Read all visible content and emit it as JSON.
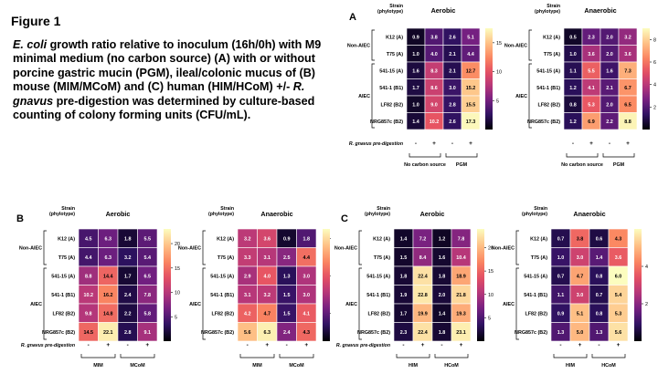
{
  "figure": {
    "title": "Figure 1",
    "caption": {
      "p1": "E. coli",
      "p2": " growth ratio relative to inoculum (16h/0h) with M9 minimal medium (no carbon source) (A) with or without porcine gastric mucin (PGM), ileal/colonic mucus of (B) mouse (MIM/MCoM) and (C) human (HIM/HCoM) +/- ",
      "p3": "R. gnavus",
      "p4": " pre-digestion was determined by culture-based counting of colony forming units (CFU/mL)."
    }
  },
  "colors": {
    "stops": [
      "#000004",
      "#2d1160",
      "#721f81",
      "#b5367a",
      "#e55063",
      "#fb8861",
      "#fec287",
      "#fcfdbf"
    ]
  },
  "chart_data": [
    {
      "type": "heatmap",
      "panel": "A",
      "row_header": "Strain\n(phylotype)",
      "rows": [
        "K12 (A)",
        "T75 (A)",
        "541-15 (A)",
        "541-1 (B1)",
        "LF82 (B2)",
        "NRG857c (B2)"
      ],
      "group_labels": [
        "Non-AIEC",
        "AIEC"
      ],
      "predigestion_label": "R. gnavus pre-digestion",
      "treatment_signs": [
        "-",
        "+",
        "-",
        "+"
      ],
      "column_groups": [
        "No carbon source",
        "PGM"
      ],
      "maps": [
        {
          "title": "Aerobic",
          "scale_ticks": [
            5,
            10,
            15
          ],
          "vmin": 0,
          "vmax": 17.5,
          "values": [
            [
              0.9,
              3.8,
              2.6,
              5.1
            ],
            [
              1.0,
              4.0,
              2.1,
              4.4
            ],
            [
              1.6,
              8.3,
              2.1,
              12.7
            ],
            [
              1.7,
              8.6,
              3.0,
              15.2
            ],
            [
              1.0,
              9.0,
              2.8,
              15.5
            ],
            [
              1.4,
              10.2,
              2.6,
              17.3
            ]
          ]
        },
        {
          "title": "Anaerobic",
          "scale_ticks": [
            2,
            4,
            6,
            8
          ],
          "vmin": 0,
          "vmax": 9,
          "values": [
            [
              0.5,
              2.3,
              2.0,
              3.2
            ],
            [
              1.0,
              3.6,
              2.0,
              3.6
            ],
            [
              1.1,
              5.5,
              1.6,
              7.3
            ],
            [
              1.2,
              4.1,
              2.1,
              6.7
            ],
            [
              0.8,
              5.3,
              2.0,
              6.5
            ],
            [
              1.2,
              6.9,
              2.2,
              8.8
            ]
          ]
        }
      ]
    },
    {
      "type": "heatmap",
      "panel": "B",
      "row_header": "Strain\n(phylotype)",
      "rows": [
        "K12 (A)",
        "T75 (A)",
        "541-15 (A)",
        "541-1 (B1)",
        "LF82 (B2)",
        "NRG857c (B2)"
      ],
      "group_labels": [
        "Non-AIEC",
        "AIEC"
      ],
      "predigestion_label": "R. gnavus pre-digestion",
      "treatment_signs": [
        "-",
        "+",
        "-",
        "+"
      ],
      "column_groups": [
        "MIM",
        "MCoM"
      ],
      "maps": [
        {
          "title": "Aerobic",
          "scale_ticks": [
            5,
            10,
            15,
            20
          ],
          "vmin": 0,
          "vmax": 23,
          "values": [
            [
              4.5,
              6.3,
              1.8,
              5.5
            ],
            [
              4.4,
              6.3,
              3.2,
              5.4
            ],
            [
              8.8,
              14.4,
              1.7,
              6.5
            ],
            [
              10.2,
              16.2,
              2.4,
              7.8
            ],
            [
              9.8,
              14.8,
              2.2,
              5.8
            ],
            [
              14.5,
              22.1,
              2.8,
              9.1
            ]
          ]
        },
        {
          "title": "Anaerobic",
          "scale_ticks": [
            2,
            4,
            6
          ],
          "vmin": 0.5,
          "vmax": 6.5,
          "values": [
            [
              3.2,
              3.6,
              0.9,
              1.8
            ],
            [
              3.3,
              3.1,
              2.5,
              4.4
            ],
            [
              2.9,
              4.0,
              1.3,
              3.0
            ],
            [
              3.1,
              3.2,
              1.5,
              3.0
            ],
            [
              4.2,
              4.7,
              1.5,
              4.1
            ],
            [
              5.6,
              6.3,
              2.4,
              4.3
            ]
          ]
        }
      ]
    },
    {
      "type": "heatmap",
      "panel": "C",
      "row_header": "Strain\n(phylotype)",
      "rows": [
        "K12 (A)",
        "T75 (A)",
        "541-15 (A)",
        "541-1 (B1)",
        "LF82 (B2)",
        "NRG857c (B2)"
      ],
      "group_labels": [
        "Non-AIEC",
        "AIEC"
      ],
      "predigestion_label": "R. gnavus pre-digestion",
      "treatment_signs": [
        "-",
        "+",
        "-",
        "+"
      ],
      "column_groups": [
        "HIM",
        "HCoM"
      ],
      "maps": [
        {
          "title": "Aerobic",
          "scale_ticks": [
            5,
            10,
            15,
            20
          ],
          "vmin": 0,
          "vmax": 24,
          "values": [
            [
              1.4,
              7.2,
              1.2,
              7.8
            ],
            [
              1.5,
              8.4,
              1.6,
              10.4
            ],
            [
              1.8,
              22.4,
              1.8,
              18.9
            ],
            [
              1.9,
              22.8,
              2.0,
              21.8
            ],
            [
              1.7,
              19.9,
              1.4,
              19.3
            ],
            [
              2.3,
              22.4,
              1.8,
              23.1
            ]
          ]
        },
        {
          "title": "Anaerobic",
          "scale_ticks": [
            2,
            4
          ],
          "vmin": 0,
          "vmax": 6,
          "values": [
            [
              0.7,
              3.8,
              0.6,
              4.3
            ],
            [
              1.0,
              3.0,
              1.4,
              3.6
            ],
            [
              0.7,
              4.7,
              0.8,
              6.0
            ],
            [
              1.1,
              3.0,
              0.7,
              5.4
            ],
            [
              0.9,
              5.1,
              0.8,
              5.3
            ],
            [
              1.3,
              5.0,
              1.3,
              5.6
            ]
          ]
        }
      ]
    }
  ]
}
